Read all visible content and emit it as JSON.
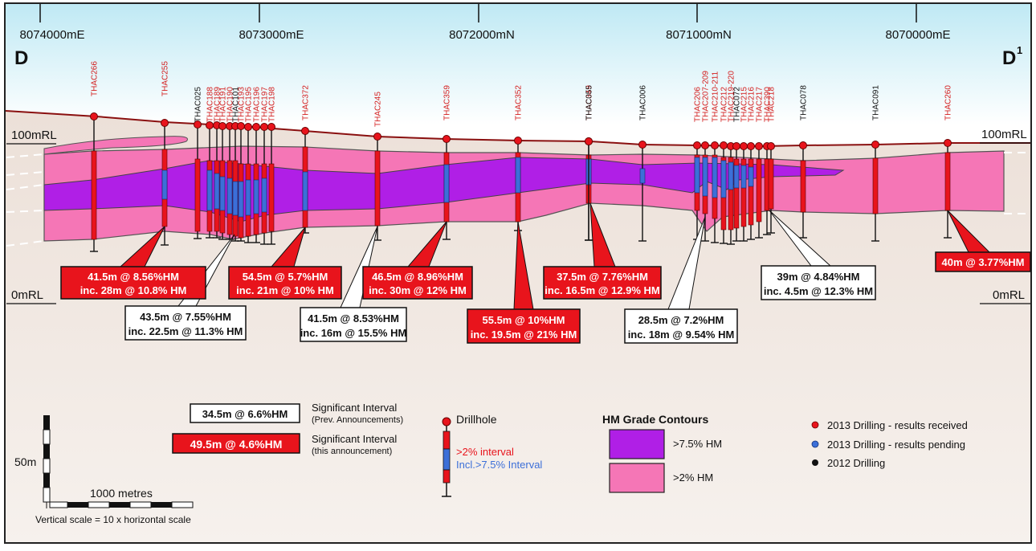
{
  "section": {
    "start_label": "D",
    "end_label": "D",
    "end_superscript": "1"
  },
  "eastings": [
    "8074000mE",
    "8073000mE",
    "8072000mN",
    "8071000mN",
    "8070000mE"
  ],
  "levels": {
    "top": "100mRL",
    "bottom": "0mRL"
  },
  "drillholes": [
    {
      "id": "THAC266",
      "color": "#d42020",
      "status": "received"
    },
    {
      "id": "THAC255",
      "color": "#d42020",
      "status": "received"
    },
    {
      "id": "THAC025",
      "color": "#111111",
      "status": "2012"
    },
    {
      "id": "THAC188",
      "color": "#d42020",
      "status": "received"
    },
    {
      "id": "THAC189",
      "color": "#d42020",
      "status": "received"
    },
    {
      "id": "THAC191",
      "color": "#d42020",
      "status": "received"
    },
    {
      "id": "THAC190",
      "color": "#d42020",
      "status": "received"
    },
    {
      "id": "THAC101",
      "color": "#111111",
      "status": "2012"
    },
    {
      "id": "THAC193",
      "color": "#d42020",
      "status": "received"
    },
    {
      "id": "THAC195",
      "color": "#d42020",
      "status": "received"
    },
    {
      "id": "THAC196",
      "color": "#d42020",
      "status": "received"
    },
    {
      "id": "THAC197",
      "color": "#d42020",
      "status": "received"
    },
    {
      "id": "THAC198",
      "color": "#d42020",
      "status": "received"
    },
    {
      "id": "THAC372",
      "color": "#d42020",
      "status": "received"
    },
    {
      "id": "THAC245",
      "color": "#d42020",
      "status": "received"
    },
    {
      "id": "THAC359",
      "color": "#d42020",
      "status": "received"
    },
    {
      "id": "THAC352",
      "color": "#d42020",
      "status": "received"
    },
    {
      "id": "THAC349",
      "color": "#d42020",
      "status": "received"
    },
    {
      "id": "THAC055",
      "color": "#111111",
      "status": "2012"
    },
    {
      "id": "THAC006",
      "color": "#111111",
      "status": "2012"
    },
    {
      "id": "THAC206",
      "color": "#d42020",
      "status": "received"
    },
    {
      "id": "THAC207-209",
      "color": "#d42020",
      "status": "received"
    },
    {
      "id": "THAC210-211",
      "color": "#d42020",
      "status": "received"
    },
    {
      "id": "THAC212",
      "color": "#d42020",
      "status": "received"
    },
    {
      "id": "THAC219-220",
      "color": "#d42020",
      "status": "received"
    },
    {
      "id": "THAC072",
      "color": "#111111",
      "status": "2012"
    },
    {
      "id": "THAC215",
      "color": "#d42020",
      "status": "received"
    },
    {
      "id": "THAC216",
      "color": "#d42020",
      "status": "received"
    },
    {
      "id": "THAC217",
      "color": "#d42020",
      "status": "received"
    },
    {
      "id": "THAC390",
      "color": "#d42020",
      "status": "received"
    },
    {
      "id": "THAC218",
      "color": "#d42020",
      "status": "received"
    },
    {
      "id": "THAC078",
      "color": "#111111",
      "status": "2012"
    },
    {
      "id": "THAC091",
      "color": "#111111",
      "status": "2012"
    },
    {
      "id": "THAC260",
      "color": "#d42020",
      "status": "received"
    }
  ],
  "intervals": [
    {
      "line1": "41.5m @ 8.56%HM",
      "line2": "inc. 28m @ 10.8% HM",
      "style": "current"
    },
    {
      "line1": "43.5m @ 7.55%HM",
      "line2": "inc. 22.5m @ 11.3% HM",
      "style": "previous"
    },
    {
      "line1": "54.5m @ 5.7%HM",
      "line2": "inc. 21m @ 10% HM",
      "style": "current"
    },
    {
      "line1": "41.5m @ 8.53%HM",
      "line2": "inc. 16m @ 15.5% HM",
      "style": "previous"
    },
    {
      "line1": "46.5m @ 8.96%HM",
      "line2": "inc. 30m @ 12% HM",
      "style": "current"
    },
    {
      "line1": "55.5m @ 10%HM",
      "line2": "inc. 19.5m @ 21% HM",
      "style": "current"
    },
    {
      "line1": "37.5m @ 7.76%HM",
      "line2": "inc. 16.5m @ 12.9% HM",
      "style": "current"
    },
    {
      "line1": "28.5m @ 7.2%HM",
      "line2": "inc. 18m @ 9.54% HM",
      "style": "previous"
    },
    {
      "line1": "39m @ 4.84%HM",
      "line2": "inc. 4.5m @ 12.3% HM",
      "style": "previous"
    },
    {
      "line1": "40m @ 3.77%HM",
      "line2": "",
      "style": "current"
    }
  ],
  "legend": {
    "prev_example": "34.5m @ 6.6%HM",
    "prev_title": "Significant Interval",
    "prev_sub": "(Prev. Announcements)",
    "curr_example": "49.5m @ 4.6%HM",
    "curr_title": "Significant Interval",
    "curr_sub": "(this announcement)",
    "drillhole": "Drillhole",
    "interval_2pct": ">2% interval",
    "interval_75pct": "Incl.>7.5% Interval",
    "contours_title": "HM Grade Contours",
    "contour_high": ">7.5% HM",
    "contour_low": ">2% HM",
    "status_received": "2013 Drilling - results received",
    "status_pending": "2013 Drilling - results pending",
    "status_2012": "2012 Drilling"
  },
  "scale": {
    "vertical_label": "50m",
    "horizontal_label": "1000 metres",
    "note": "Vertical scale = 10 x horizontal scale"
  },
  "colors": {
    "red": "#e8141c",
    "purple": "#b01fe6",
    "pink": "#f576b6",
    "blue": "#3c6fd8",
    "ground": "#ede2da",
    "sky_top": "#bfe9f4"
  }
}
